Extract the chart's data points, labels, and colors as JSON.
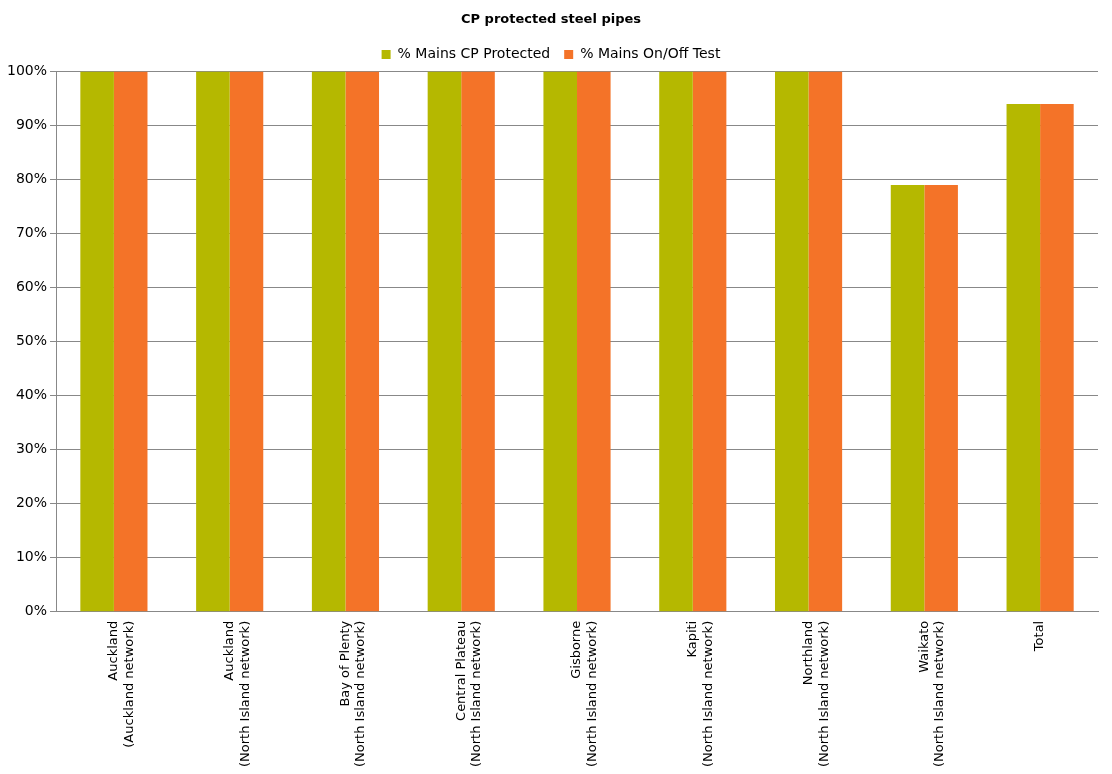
{
  "chart_data": {
    "type": "bar",
    "title": "CP protected steel pipes",
    "categories": [
      "Auckland\n(Auckland network)",
      "Auckland\n(North Island network)",
      "Bay of Plenty\n(North Island network)",
      "Central Plateau\n(North Island network)",
      "Gisborne\n(North Island network)",
      "Kapiti\n(North Island network)",
      "Northland\n(North Island network)",
      "Waikato\n(North Island network)",
      "Total"
    ],
    "series": [
      {
        "name": "% Mains CP Protected",
        "color": "#b5b800",
        "values": [
          100,
          100,
          100,
          100,
          100,
          100,
          100,
          79,
          94
        ]
      },
      {
        "name": "% Mains On/Off Test",
        "color": "#f47328",
        "values": [
          100,
          100,
          100,
          100,
          100,
          100,
          100,
          79,
          94
        ]
      }
    ],
    "ylim": [
      0,
      100
    ],
    "yticks": [
      {
        "value": 0,
        "label": "0%"
      },
      {
        "value": 10,
        "label": "10%"
      },
      {
        "value": 20,
        "label": "20%"
      },
      {
        "value": 30,
        "label": "30%"
      },
      {
        "value": 40,
        "label": "40%"
      },
      {
        "value": 50,
        "label": "50%"
      },
      {
        "value": 60,
        "label": "60%"
      },
      {
        "value": 70,
        "label": "70%"
      },
      {
        "value": 80,
        "label": "80%"
      },
      {
        "value": 90,
        "label": "90%"
      },
      {
        "value": 100,
        "label": "100%"
      }
    ],
    "grid": "y",
    "legend": "top"
  }
}
